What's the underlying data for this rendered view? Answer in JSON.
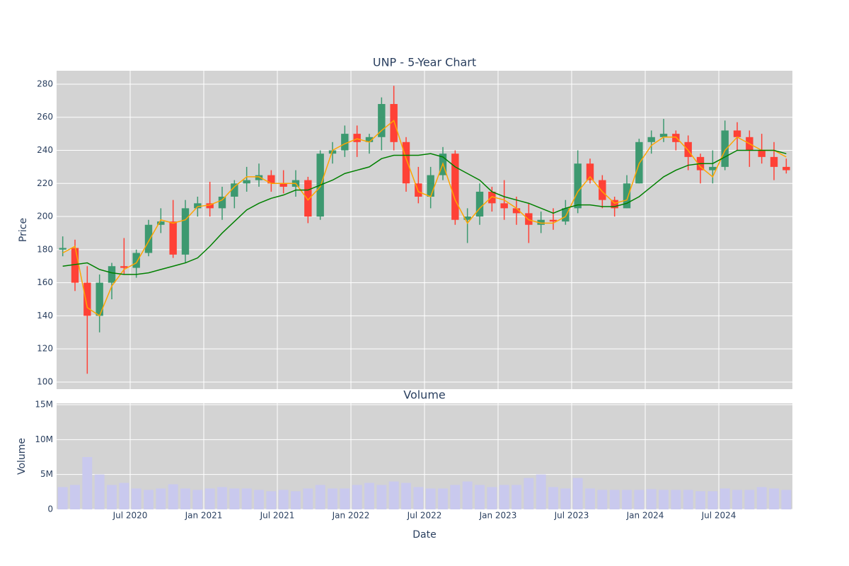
{
  "chart_data": [
    {
      "type": "candlestick",
      "title": "UNP - 5-Year Chart",
      "y_label": "Price",
      "increasing_color": "#3d9970",
      "decreasing_color": "#ff4136",
      "x": [
        "2020-01",
        "2020-02",
        "2020-03",
        "2020-04",
        "2020-05",
        "2020-06",
        "2020-07",
        "2020-08",
        "2020-09",
        "2020-10",
        "2020-11",
        "2020-12",
        "2021-01",
        "2021-02",
        "2021-03",
        "2021-04",
        "2021-05",
        "2021-06",
        "2021-07",
        "2021-08",
        "2021-09",
        "2021-10",
        "2021-11",
        "2021-12",
        "2022-01",
        "2022-02",
        "2022-03",
        "2022-04",
        "2022-05",
        "2022-06",
        "2022-07",
        "2022-08",
        "2022-09",
        "2022-10",
        "2022-11",
        "2022-12",
        "2023-01",
        "2023-02",
        "2023-03",
        "2023-04",
        "2023-05",
        "2023-06",
        "2023-07",
        "2023-08",
        "2023-09",
        "2023-10",
        "2023-11",
        "2023-12",
        "2024-01",
        "2024-02",
        "2024-03",
        "2024-04",
        "2024-05",
        "2024-06",
        "2024-07",
        "2024-08",
        "2024-09",
        "2024-10",
        "2024-11",
        "2024-12"
      ],
      "open": [
        180,
        181,
        160,
        140,
        160,
        170,
        169,
        178,
        195,
        197,
        177,
        205,
        208,
        205,
        212,
        220,
        222,
        225,
        220,
        218,
        222,
        200,
        238,
        240,
        250,
        245,
        248,
        268,
        245,
        220,
        212,
        225,
        238,
        198,
        200,
        215,
        208,
        205,
        202,
        195,
        198,
        197,
        205,
        232,
        222,
        210,
        205,
        220,
        245,
        248,
        250,
        245,
        236,
        228,
        230,
        252,
        248,
        240,
        236,
        230
      ],
      "high": [
        188,
        186,
        170,
        165,
        172,
        187,
        180,
        198,
        205,
        210,
        210,
        212,
        221,
        218,
        222,
        230,
        232,
        228,
        228,
        228,
        224,
        240,
        245,
        255,
        255,
        250,
        272,
        279,
        248,
        230,
        230,
        242,
        240,
        205,
        220,
        218,
        222,
        212,
        208,
        203,
        205,
        210,
        240,
        235,
        225,
        212,
        225,
        247,
        252,
        259,
        252,
        249,
        238,
        240,
        258,
        257,
        252,
        250,
        245,
        235
      ],
      "low": [
        176,
        155,
        105,
        130,
        150,
        165,
        163,
        176,
        190,
        175,
        172,
        200,
        200,
        198,
        205,
        215,
        218,
        215,
        214,
        212,
        196,
        198,
        232,
        236,
        236,
        238,
        240,
        240,
        215,
        208,
        205,
        222,
        195,
        184,
        195,
        203,
        198,
        195,
        184,
        190,
        192,
        195,
        202,
        220,
        205,
        200,
        205,
        220,
        238,
        245,
        240,
        228,
        220,
        220,
        228,
        240,
        230,
        232,
        222,
        226
      ],
      "close": [
        181,
        160,
        140,
        160,
        170,
        169,
        178,
        195,
        197,
        177,
        205,
        208,
        205,
        212,
        220,
        222,
        225,
        220,
        218,
        222,
        200,
        238,
        240,
        250,
        245,
        248,
        268,
        245,
        220,
        212,
        225,
        238,
        198,
        200,
        215,
        208,
        205,
        202,
        195,
        198,
        197,
        205,
        232,
        222,
        210,
        205,
        220,
        245,
        248,
        250,
        245,
        236,
        228,
        230,
        252,
        248,
        240,
        236,
        230,
        228
      ],
      "series": [
        {
          "color": "#ffa500",
          "values": [
            178,
            182,
            145,
            140,
            158,
            168,
            172,
            185,
            198,
            196,
            198,
            206,
            207,
            210,
            218,
            224,
            224,
            220,
            220,
            220,
            210,
            218,
            240,
            244,
            247,
            245,
            252,
            258,
            235,
            215,
            212,
            232,
            210,
            196,
            205,
            212,
            210,
            205,
            198,
            196,
            196,
            200,
            215,
            224,
            215,
            208,
            210,
            232,
            243,
            248,
            248,
            240,
            230,
            224,
            240,
            248,
            244,
            240,
            240,
            236
          ]
        },
        {
          "color": "#008000",
          "values": [
            170,
            171,
            172,
            168,
            166,
            165,
            165,
            166,
            168,
            170,
            172,
            175,
            182,
            190,
            197,
            204,
            208,
            211,
            213,
            216,
            216,
            219,
            222,
            226,
            228,
            230,
            235,
            237,
            237,
            237,
            238,
            236,
            230,
            226,
            222,
            215,
            212,
            210,
            208,
            205,
            202,
            205,
            207,
            207,
            206,
            206,
            208,
            212,
            218,
            224,
            228,
            231,
            232,
            232,
            236,
            240,
            240,
            240,
            240,
            238
          ]
        }
      ],
      "xlim": [
        "2020-01",
        "2025-01"
      ],
      "ylim": [
        95.7,
        288.1
      ],
      "yticks": [
        100,
        120,
        140,
        160,
        180,
        200,
        220,
        240,
        260,
        280
      ],
      "grid": true
    },
    {
      "type": "bar",
      "title": "Volume",
      "y_label": "Volume",
      "x_label": "Date",
      "color": "#c9c9ee",
      "x": [
        "2020-01",
        "2020-02",
        "2020-03",
        "2020-04",
        "2020-05",
        "2020-06",
        "2020-07",
        "2020-08",
        "2020-09",
        "2020-10",
        "2020-11",
        "2020-12",
        "2021-01",
        "2021-02",
        "2021-03",
        "2021-04",
        "2021-05",
        "2021-06",
        "2021-07",
        "2021-08",
        "2021-09",
        "2021-10",
        "2021-11",
        "2021-12",
        "2022-01",
        "2022-02",
        "2022-03",
        "2022-04",
        "2022-05",
        "2022-06",
        "2022-07",
        "2022-08",
        "2022-09",
        "2022-10",
        "2022-11",
        "2022-12",
        "2023-01",
        "2023-02",
        "2023-03",
        "2023-04",
        "2023-05",
        "2023-06",
        "2023-07",
        "2023-08",
        "2023-09",
        "2023-10",
        "2023-11",
        "2023-12",
        "2024-01",
        "2024-02",
        "2024-03",
        "2024-04",
        "2024-05",
        "2024-06",
        "2024-07",
        "2024-08",
        "2024-09",
        "2024-10",
        "2024-11",
        "2024-12"
      ],
      "values": [
        3200000,
        3500000,
        7500000,
        5000000,
        3500000,
        3800000,
        3000000,
        2800000,
        3000000,
        3600000,
        3000000,
        2800000,
        3000000,
        3200000,
        3000000,
        3000000,
        2800000,
        2600000,
        2800000,
        2600000,
        3000000,
        3500000,
        3000000,
        3000000,
        3500000,
        3800000,
        3500000,
        4000000,
        3800000,
        3200000,
        3000000,
        3000000,
        3500000,
        4000000,
        3500000,
        3200000,
        3500000,
        3500000,
        4500000,
        5000000,
        3200000,
        3000000,
        4500000,
        3000000,
        2800000,
        2800000,
        2800000,
        2800000,
        2900000,
        2800000,
        2800000,
        2800000,
        2600000,
        2600000,
        3000000,
        2800000,
        2800000,
        3200000,
        3000000,
        2800000
      ],
      "xlim": [
        "2020-01",
        "2025-01"
      ],
      "xticks": [
        {
          "value": "2020-07",
          "label": "Jul 2020"
        },
        {
          "value": "2021-01",
          "label": "Jan 2021"
        },
        {
          "value": "2021-07",
          "label": "Jul 2021"
        },
        {
          "value": "2022-01",
          "label": "Jan 2022"
        },
        {
          "value": "2022-07",
          "label": "Jul 2022"
        },
        {
          "value": "2023-01",
          "label": "Jan 2023"
        },
        {
          "value": "2023-07",
          "label": "Jul 2023"
        },
        {
          "value": "2024-01",
          "label": "Jan 2024"
        },
        {
          "value": "2024-07",
          "label": "Jul 2024"
        }
      ],
      "ylim": [
        0,
        15200000
      ],
      "yticks": [
        0,
        {
          "value": 5000000,
          "label": "5M"
        },
        {
          "value": 10000000,
          "label": "10M"
        },
        {
          "value": 15000000,
          "label": "15M"
        }
      ],
      "grid": true
    }
  ]
}
